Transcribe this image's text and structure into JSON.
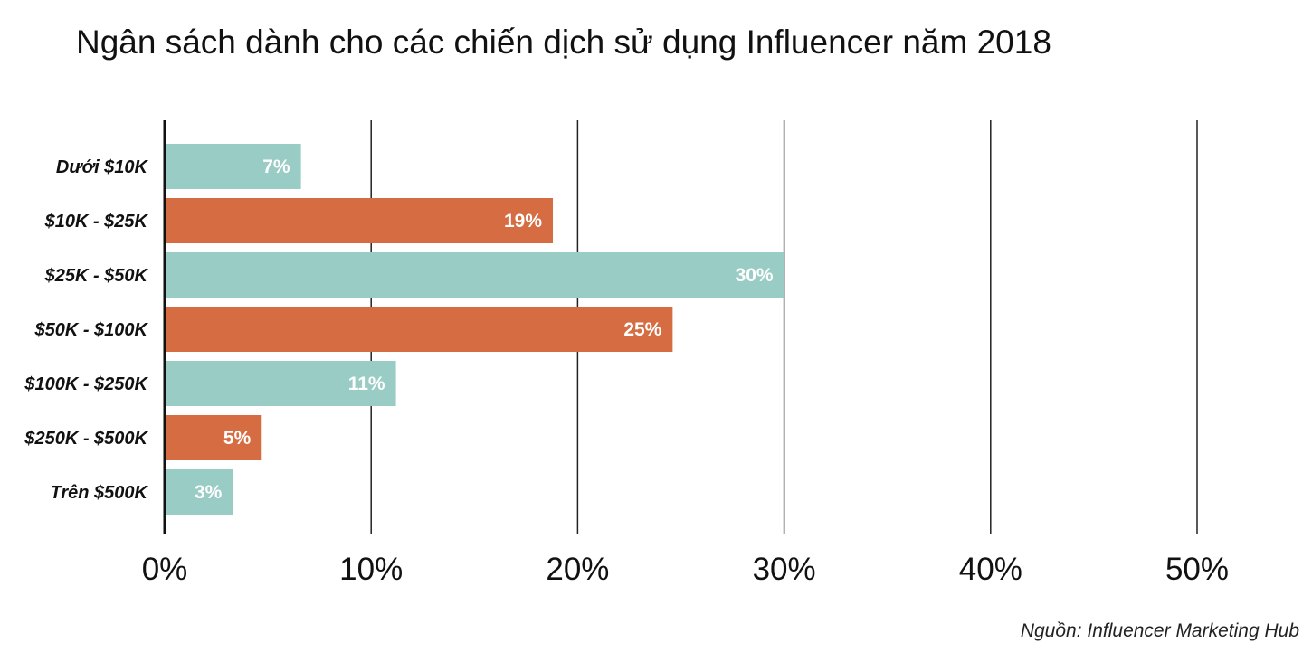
{
  "chart_data": {
    "type": "bar",
    "orientation": "horizontal",
    "title": "Ngân sách dành cho các chiến dịch sử dụng Influencer năm 2018",
    "categories": [
      "Dưới $10K",
      "$10K - $25K",
      "$25K - $50K",
      "$50K - $100K",
      "$100K - $250K",
      "$250K - $500K",
      "Trên $500K"
    ],
    "values": [
      6.6,
      18.8,
      30,
      24.6,
      11.2,
      4.7,
      3.3
    ],
    "value_labels": [
      "7%",
      "19%",
      "30%",
      "25%",
      "11%",
      "5%",
      "3%"
    ],
    "bar_colors": [
      "#99CCC5",
      "#D66C42",
      "#99CCC5",
      "#D66C42",
      "#99CCC5",
      "#D66C42",
      "#99CCC5"
    ],
    "xlim": [
      0,
      50
    ],
    "x_ticks": [
      0,
      10,
      20,
      30,
      40,
      50
    ],
    "x_tick_labels": [
      "0%",
      "10%",
      "20%",
      "30%",
      "40%",
      "50%"
    ],
    "grid": true,
    "legend": "none",
    "source": "Nguồn: Influencer Marketing Hub"
  }
}
